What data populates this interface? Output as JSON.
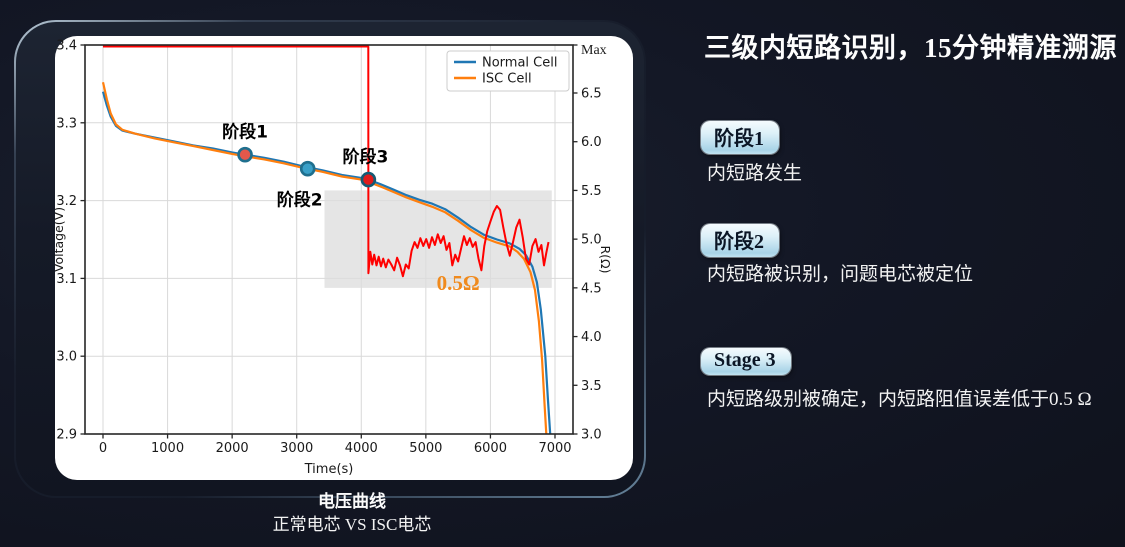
{
  "page": {
    "background": "#12151f"
  },
  "right_panel": {
    "title": "三级内短路识别，15分钟精准溯源",
    "stages": [
      {
        "badge": "阶段1",
        "description": "内短路发生"
      },
      {
        "badge": "阶段2",
        "description": "内短路被识别，问题电芯被定位"
      },
      {
        "badge": "Stage 3",
        "description": "内短路级别被确定，内短路阻值误差低于0.5 Ω"
      }
    ]
  },
  "caption": {
    "title": "电压曲线",
    "subtitle": "正常电芯 VS ISC电芯"
  },
  "chart_data": {
    "type": "line",
    "xlabel": "Time(s)",
    "ylabel_left": "Voltage(V)",
    "ylabel_right": "R(Ω)",
    "xlim": [
      -280,
      7280
    ],
    "xticks": [
      0,
      1000,
      2000,
      3000,
      4000,
      5000,
      6000,
      7000
    ],
    "ylim_left": [
      2.9,
      3.4
    ],
    "yticks_left": [
      2.9,
      3.0,
      3.1,
      3.2,
      3.3,
      3.4
    ],
    "ylim_right": [
      3.0,
      7.0
    ],
    "yticks_right": [
      3.0,
      3.5,
      4.0,
      4.5,
      5.0,
      5.5,
      6.0,
      6.5
    ],
    "ymax_right_label": "Max",
    "grid": true,
    "legend": {
      "position": "upper right",
      "entries": [
        {
          "label": "Normal Cell",
          "color": "#1f77b4"
        },
        {
          "label": "ISC Cell",
          "color": "#ff7f0e"
        }
      ]
    },
    "series": [
      {
        "name": "Normal Cell",
        "axis": "left",
        "color": "#1f77b4",
        "points": [
          [
            0,
            3.34
          ],
          [
            60,
            3.322
          ],
          [
            120,
            3.308
          ],
          [
            200,
            3.296
          ],
          [
            300,
            3.29
          ],
          [
            500,
            3.286
          ],
          [
            800,
            3.281
          ],
          [
            1100,
            3.276
          ],
          [
            1400,
            3.271
          ],
          [
            1700,
            3.267
          ],
          [
            2000,
            3.262
          ],
          [
            2200,
            3.259
          ],
          [
            2500,
            3.255
          ],
          [
            2800,
            3.25
          ],
          [
            3100,
            3.244
          ],
          [
            3400,
            3.239
          ],
          [
            3700,
            3.233
          ],
          [
            4000,
            3.229
          ],
          [
            4110,
            3.227
          ],
          [
            4300,
            3.221
          ],
          [
            4500,
            3.214
          ],
          [
            4700,
            3.207
          ],
          [
            4900,
            3.201
          ],
          [
            5100,
            3.196
          ],
          [
            5300,
            3.189
          ],
          [
            5500,
            3.178
          ],
          [
            5700,
            3.166
          ],
          [
            5900,
            3.156
          ],
          [
            6100,
            3.15
          ],
          [
            6300,
            3.145
          ],
          [
            6450,
            3.138
          ],
          [
            6550,
            3.13
          ],
          [
            6650,
            3.115
          ],
          [
            6720,
            3.095
          ],
          [
            6780,
            3.06
          ],
          [
            6850,
            3.0
          ],
          [
            6890,
            2.945
          ],
          [
            6925,
            2.9
          ]
        ]
      },
      {
        "name": "ISC Cell",
        "axis": "left",
        "color": "#ff7f0e",
        "points": [
          [
            0,
            3.352
          ],
          [
            60,
            3.33
          ],
          [
            120,
            3.312
          ],
          [
            200,
            3.298
          ],
          [
            300,
            3.291
          ],
          [
            500,
            3.286
          ],
          [
            800,
            3.28
          ],
          [
            1100,
            3.275
          ],
          [
            1400,
            3.27
          ],
          [
            1700,
            3.265
          ],
          [
            2000,
            3.26
          ],
          [
            2200,
            3.257
          ],
          [
            2500,
            3.253
          ],
          [
            2800,
            3.248
          ],
          [
            3100,
            3.242
          ],
          [
            3400,
            3.237
          ],
          [
            3700,
            3.231
          ],
          [
            4000,
            3.227
          ],
          [
            4110,
            3.224
          ],
          [
            4300,
            3.218
          ],
          [
            4500,
            3.211
          ],
          [
            4700,
            3.204
          ],
          [
            4900,
            3.198
          ],
          [
            5100,
            3.192
          ],
          [
            5300,
            3.185
          ],
          [
            5500,
            3.174
          ],
          [
            5700,
            3.162
          ],
          [
            5900,
            3.152
          ],
          [
            6100,
            3.146
          ],
          [
            6300,
            3.141
          ],
          [
            6420,
            3.134
          ],
          [
            6520,
            3.125
          ],
          [
            6620,
            3.108
          ],
          [
            6690,
            3.085
          ],
          [
            6750,
            3.045
          ],
          [
            6800,
            2.995
          ],
          [
            6840,
            2.935
          ],
          [
            6865,
            2.9
          ]
        ]
      },
      {
        "name": "ISC Resistance",
        "axis": "right",
        "color": "#ff0000",
        "points": [
          [
            0,
            7.0
          ],
          [
            4108,
            7.0
          ],
          [
            4110,
            4.65
          ],
          [
            4140,
            4.87
          ],
          [
            4170,
            4.74
          ],
          [
            4200,
            4.84
          ],
          [
            4235,
            4.73
          ],
          [
            4270,
            4.82
          ],
          [
            4305,
            4.72
          ],
          [
            4340,
            4.8
          ],
          [
            4380,
            4.71
          ],
          [
            4420,
            4.79
          ],
          [
            4465,
            4.74
          ],
          [
            4510,
            4.68
          ],
          [
            4555,
            4.81
          ],
          [
            4600,
            4.73
          ],
          [
            4645,
            4.62
          ],
          [
            4690,
            4.74
          ],
          [
            4735,
            4.7
          ],
          [
            4780,
            4.88
          ],
          [
            4825,
            4.97
          ],
          [
            4870,
            4.91
          ],
          [
            4915,
            5.01
          ],
          [
            4960,
            4.93
          ],
          [
            5005,
            5.0
          ],
          [
            5050,
            4.91
          ],
          [
            5095,
            5.02
          ],
          [
            5140,
            4.94
          ],
          [
            5185,
            5.05
          ],
          [
            5230,
            4.96
          ],
          [
            5275,
            5.03
          ],
          [
            5320,
            4.89
          ],
          [
            5365,
            4.96
          ],
          [
            5410,
            4.73
          ],
          [
            5455,
            4.84
          ],
          [
            5500,
            4.77
          ],
          [
            5545,
            4.9
          ],
          [
            5590,
            5.03
          ],
          [
            5635,
            4.94
          ],
          [
            5680,
            5.01
          ],
          [
            5725,
            4.92
          ],
          [
            5770,
            4.97
          ],
          [
            5815,
            4.8
          ],
          [
            5860,
            4.68
          ],
          [
            5905,
            4.93
          ],
          [
            5950,
            5.08
          ],
          [
            6000,
            5.18
          ],
          [
            6050,
            5.28
          ],
          [
            6100,
            5.34
          ],
          [
            6150,
            5.3
          ],
          [
            6200,
            5.12
          ],
          [
            6250,
            4.95
          ],
          [
            6300,
            4.83
          ],
          [
            6350,
            4.97
          ],
          [
            6400,
            5.12
          ],
          [
            6450,
            5.2
          ],
          [
            6500,
            5.02
          ],
          [
            6550,
            4.8
          ],
          [
            6600,
            4.74
          ],
          [
            6650,
            4.93
          ],
          [
            6700,
            5.0
          ],
          [
            6745,
            4.87
          ],
          [
            6790,
            4.94
          ],
          [
            6830,
            4.73
          ],
          [
            6865,
            4.86
          ],
          [
            6900,
            4.97
          ]
        ]
      }
    ],
    "shaded_region": {
      "t": [
        3430,
        6950
      ],
      "r": [
        4.5,
        5.5
      ],
      "color": "#dcdcdc",
      "opacity": 0.75
    },
    "stage_markers": [
      {
        "label": "阶段1",
        "t": 2200,
        "v": 3.259,
        "fill": "#e4584b",
        "ring": "#1f6f8e",
        "label_pos": "above",
        "label_dx": 0
      },
      {
        "label": "阶段2",
        "t": 3170,
        "v": 3.241,
        "fill": "#39a0c8",
        "ring": "#1f6f8e",
        "label_pos": "below",
        "label_dx": -8
      },
      {
        "label": "阶段3",
        "t": 4110,
        "v": 3.227,
        "fill": "#e01b1b",
        "ring": "#155a73",
        "label_pos": "above",
        "label_dx": -3
      }
    ],
    "annotation": {
      "text": "0.5Ω",
      "t": 5500,
      "r": 4.55,
      "color": "#f08a1d"
    }
  }
}
